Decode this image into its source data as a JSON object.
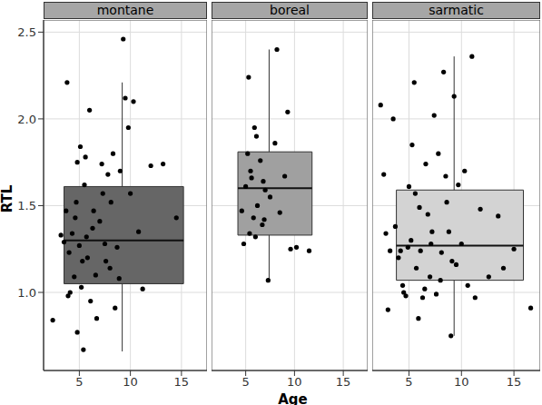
{
  "chart_data": {
    "type": "boxplot",
    "x_label": "Age",
    "y_label": "RTL",
    "xlim": [
      1.5,
      17.5
    ],
    "xticks": [
      5,
      10,
      15
    ],
    "ylim": [
      0.55,
      2.57
    ],
    "yticks": [
      {
        "value": 1,
        "label": "1.0"
      },
      {
        "value": 1.5,
        "label": "1.5"
      },
      {
        "value": 2,
        "label": "2.0"
      },
      {
        "value": 2.5,
        "label": "2.5"
      }
    ],
    "grid": true,
    "marker": "circle",
    "series": [
      {
        "name": "montane",
        "color": "#666666",
        "box": {
          "xmin": 3.5,
          "xmax": 15.2,
          "whisker_x": 9.2,
          "low": 0.66,
          "q1": 1.05,
          "median": 1.3,
          "q3": 1.61,
          "high": 2.21
        },
        "x": [
          2.4,
          3.2,
          3.5,
          3.8,
          3.7,
          3.9,
          4.0,
          4.1,
          4.3,
          4.5,
          4.6,
          4.7,
          4.8,
          4.8,
          5.0,
          5.1,
          5.2,
          5.3,
          5.4,
          5.5,
          5.6,
          5.7,
          5.8,
          6.0,
          6.1,
          6.3,
          6.4,
          6.6,
          6.7,
          7.0,
          7.2,
          7.3,
          7.5,
          7.6,
          7.8,
          8.0,
          8.1,
          8.3,
          8.5,
          8.7,
          8.9,
          9.0,
          9.3,
          9.5,
          9.8,
          10.0,
          10.3,
          10.8,
          11.2,
          12.0,
          13.2,
          14.5
        ],
        "values": [
          0.84,
          1.33,
          1.29,
          2.21,
          1.47,
          0.98,
          1.23,
          1.0,
          1.34,
          1.09,
          1.43,
          1.52,
          1.75,
          0.77,
          1.27,
          1.84,
          1.03,
          1.18,
          0.67,
          1.62,
          1.78,
          1.32,
          1.2,
          2.05,
          0.95,
          1.37,
          1.47,
          1.1,
          0.85,
          1.41,
          1.74,
          1.57,
          1.28,
          1.18,
          1.68,
          1.14,
          1.52,
          1.8,
          0.91,
          1.26,
          1.08,
          1.7,
          2.46,
          2.12,
          1.95,
          1.57,
          2.1,
          1.35,
          1.02,
          1.73,
          1.74,
          1.43
        ]
      },
      {
        "name": "boreal",
        "color": "#a0a0a0",
        "box": {
          "xmin": 4.2,
          "xmax": 11.8,
          "whisker_x": 7.4,
          "low": 1.07,
          "q1": 1.33,
          "median": 1.6,
          "q3": 1.81,
          "high": 2.4
        },
        "x": [
          4.6,
          4.8,
          5.0,
          5.2,
          5.3,
          5.4,
          5.5,
          5.6,
          5.8,
          5.9,
          6.0,
          6.1,
          6.2,
          6.5,
          6.7,
          6.8,
          7.0,
          7.3,
          7.5,
          8.0,
          8.2,
          8.5,
          9.0,
          9.3,
          9.6,
          10.2,
          11.5,
          6.9
        ],
        "values": [
          1.47,
          1.28,
          1.61,
          1.8,
          2.24,
          1.34,
          1.7,
          1.66,
          1.43,
          1.95,
          1.32,
          1.9,
          1.5,
          1.76,
          1.39,
          1.64,
          1.59,
          1.07,
          1.55,
          1.86,
          2.4,
          1.46,
          1.67,
          2.04,
          1.25,
          1.26,
          1.24,
          1.42
        ]
      },
      {
        "name": "sarmatic",
        "color": "#d3d3d3",
        "box": {
          "xmin": 3.8,
          "xmax": 15.9,
          "whisker_x": 9.3,
          "low": 0.75,
          "q1": 1.07,
          "median": 1.27,
          "q3": 1.59,
          "high": 2.36
        },
        "x": [
          2.3,
          2.6,
          2.8,
          3.0,
          3.2,
          3.5,
          3.7,
          4.0,
          4.2,
          4.4,
          4.5,
          4.7,
          4.9,
          5.0,
          5.2,
          5.3,
          5.5,
          5.6,
          5.7,
          5.9,
          6.0,
          6.1,
          6.3,
          6.5,
          6.6,
          6.8,
          7.0,
          7.1,
          7.2,
          7.4,
          7.6,
          7.8,
          8.0,
          8.1,
          8.3,
          8.5,
          8.6,
          8.8,
          9.0,
          9.1,
          9.3,
          9.5,
          9.7,
          10.0,
          10.3,
          10.6,
          11.0,
          11.3,
          11.8,
          12.6,
          13.5,
          15.0,
          16.6,
          14.0
        ],
        "values": [
          2.08,
          1.68,
          1.34,
          0.9,
          1.24,
          2.0,
          1.38,
          1.2,
          1.24,
          1.04,
          1.0,
          0.98,
          1.26,
          1.61,
          1.3,
          1.85,
          2.21,
          1.57,
          1.14,
          0.85,
          1.49,
          1.24,
          0.97,
          1.02,
          1.74,
          1.45,
          1.09,
          1.28,
          1.35,
          2.02,
          0.99,
          1.8,
          1.07,
          1.23,
          2.27,
          1.67,
          1.52,
          1.35,
          0.75,
          1.18,
          2.13,
          1.16,
          1.62,
          1.28,
          1.7,
          1.04,
          2.36,
          0.97,
          1.48,
          1.09,
          1.44,
          1.25,
          0.91,
          1.14
        ]
      }
    ]
  }
}
